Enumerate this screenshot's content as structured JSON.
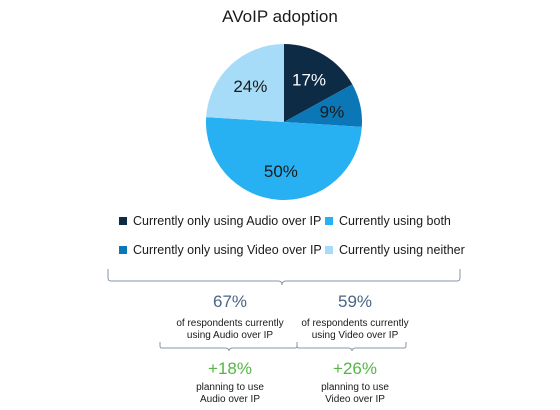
{
  "title": "AVoIP adoption",
  "colors": {
    "audio_only": "#0d2b45",
    "video_only": "#0b77b6",
    "both": "#27b1f2",
    "neither": "#a6dcf8",
    "stat_blue": "#4a6684",
    "stat_green": "#55b646",
    "brace": "#8a96a8"
  },
  "chart_data": {
    "type": "pie",
    "title": "AVoIP adoption",
    "slices": [
      {
        "name": "Currently only using Audio over IP",
        "value": 17,
        "label": "17%",
        "color": "#0d2b45",
        "label_color": "#ffffff"
      },
      {
        "name": "Currently only using Video over IP",
        "value": 9,
        "label": "9%",
        "color": "#0b77b6",
        "label_color": "#1a1a1a"
      },
      {
        "name": "Currently using both",
        "value": 50,
        "label": "50%",
        "color": "#27b1f2",
        "label_color": "#1a1a1a"
      },
      {
        "name": "Currently using neither",
        "value": 24,
        "label": "24%",
        "color": "#a6dcf8",
        "label_color": "#1a1a1a"
      }
    ],
    "start": "12 o'clock",
    "direction": "clockwise",
    "legend_placement": "bottom"
  },
  "legend": {
    "audio_only": "Currently only using Audio over IP",
    "video_only": "Currently only using Video over IP",
    "both": "Currently using both",
    "neither": "Currently using neither"
  },
  "stats": {
    "audio": {
      "current_pct": "67%",
      "current_text_1": "of respondents currently",
      "current_text_2": "using Audio over IP",
      "planning_pct": "+18%",
      "planning_text_1": "planning to use",
      "planning_text_2": "Audio over IP"
    },
    "video": {
      "current_pct": "59%",
      "current_text_1": "of respondents currently",
      "current_text_2": "using Video over IP",
      "planning_pct": "+26%",
      "planning_text_1": "planning to use",
      "planning_text_2": "Video over IP"
    }
  }
}
